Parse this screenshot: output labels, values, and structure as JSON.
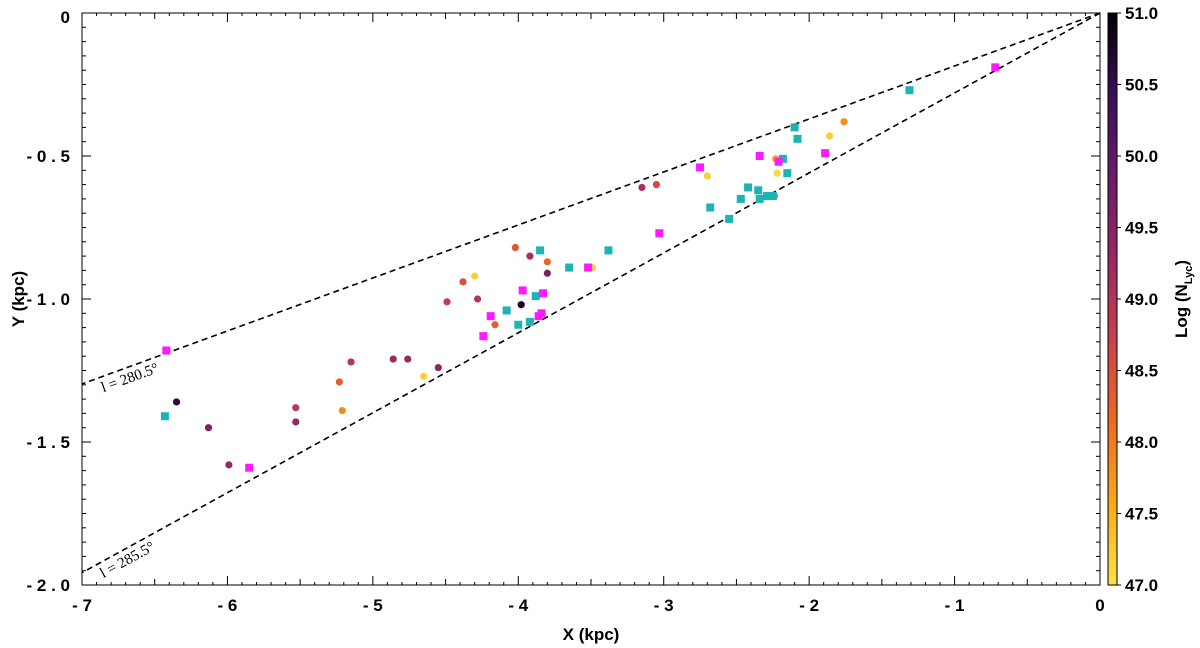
{
  "chart_data": {
    "type": "scatter",
    "xlabel": "X (kpc)",
    "ylabel": "Y (kpc)",
    "xlim": [
      -7,
      0
    ],
    "ylim": [
      -2,
      0
    ],
    "xticks": [
      -7,
      -6,
      -5,
      -4,
      -3,
      -2,
      -1,
      0
    ],
    "yticks": [
      0,
      -0.5,
      -1.0,
      -1.5,
      -2.0
    ],
    "xtick_labels": [
      "- 7",
      "- 6",
      "- 5",
      "- 4",
      "- 3",
      "- 2",
      "- 1",
      "0"
    ],
    "ytick_labels": [
      "0",
      "- 0 . 5",
      "- 1 . 0",
      "- 1 . 5",
      "- 2 . 0"
    ],
    "colorbar": {
      "label": "Log (N",
      "label_sub": "Lyc",
      "label_end": ")",
      "range": [
        47.0,
        51.0
      ],
      "ticks": [
        47.0,
        47.5,
        48.0,
        48.5,
        49.0,
        49.5,
        50.0,
        50.5,
        51.0
      ],
      "tick_labels": [
        "47.0",
        "47.5",
        "48.0",
        "48.5",
        "49.0",
        "49.5",
        "50.0",
        "50.5",
        "51.0"
      ],
      "colormap": [
        "#fde14a",
        "#f9a81b",
        "#ec6a25",
        "#c9414d",
        "#9a2860",
        "#6c1b6b",
        "#3b0f5a",
        "#000004"
      ]
    },
    "rays": [
      {
        "label": "l = 280.5°",
        "end": [
          -7,
          -1.297
        ]
      },
      {
        "label": "l = 285.5°",
        "end": [
          -7,
          -1.957
        ]
      }
    ],
    "series": [
      {
        "marker": "circle",
        "color_by": "log_NLyc",
        "points": [
          {
            "x": -6.35,
            "y": -1.36,
            "c": 50.6
          },
          {
            "x": -6.13,
            "y": -1.45,
            "c": 49.6
          },
          {
            "x": -5.99,
            "y": -1.58,
            "c": 49.3
          },
          {
            "x": -5.53,
            "y": -1.38,
            "c": 48.9
          },
          {
            "x": -5.53,
            "y": -1.43,
            "c": 49.3
          },
          {
            "x": -5.23,
            "y": -1.29,
            "c": 48.3
          },
          {
            "x": -5.21,
            "y": -1.39,
            "c": 47.8
          },
          {
            "x": -5.15,
            "y": -1.22,
            "c": 49.0
          },
          {
            "x": -4.86,
            "y": -1.21,
            "c": 49.3
          },
          {
            "x": -4.76,
            "y": -1.21,
            "c": 49.3
          },
          {
            "x": -4.65,
            "y": -1.27,
            "c": 47.2
          },
          {
            "x": -4.55,
            "y": -1.24,
            "c": 49.4
          },
          {
            "x": -4.49,
            "y": -1.01,
            "c": 48.8
          },
          {
            "x": -4.38,
            "y": -0.94,
            "c": 48.5
          },
          {
            "x": -4.3,
            "y": -0.92,
            "c": 47.2
          },
          {
            "x": -4.28,
            "y": -1.0,
            "c": 49.0
          },
          {
            "x": -4.16,
            "y": -1.09,
            "c": 48.3
          },
          {
            "x": -4.02,
            "y": -0.82,
            "c": 48.4
          },
          {
            "x": -3.98,
            "y": -1.02,
            "c": 50.8
          },
          {
            "x": -3.92,
            "y": -0.85,
            "c": 49.1
          },
          {
            "x": -3.8,
            "y": -0.87,
            "c": 48.2
          },
          {
            "x": -3.8,
            "y": -0.91,
            "c": 49.7
          },
          {
            "x": -3.49,
            "y": -0.89,
            "c": 47.2
          },
          {
            "x": -3.15,
            "y": -0.61,
            "c": 49.1
          },
          {
            "x": -3.05,
            "y": -0.6,
            "c": 48.6
          },
          {
            "x": -2.7,
            "y": -0.57,
            "c": 47.2
          },
          {
            "x": -2.24,
            "y": -0.64,
            "c": 48.6
          },
          {
            "x": -2.23,
            "y": -0.51,
            "c": 47.7
          },
          {
            "x": -2.22,
            "y": -0.56,
            "c": 47.1
          },
          {
            "x": -1.86,
            "y": -0.43,
            "c": 47.2
          },
          {
            "x": -1.76,
            "y": -0.38,
            "c": 47.8
          }
        ]
      },
      {
        "marker": "square",
        "color": "#1cb4b4",
        "points": [
          {
            "x": -6.43,
            "y": -1.41
          },
          {
            "x": -4.08,
            "y": -1.04
          },
          {
            "x": -4.0,
            "y": -1.09
          },
          {
            "x": -3.92,
            "y": -1.08
          },
          {
            "x": -3.88,
            "y": -0.99
          },
          {
            "x": -3.85,
            "y": -0.83
          },
          {
            "x": -3.65,
            "y": -0.89
          },
          {
            "x": -3.38,
            "y": -0.83
          },
          {
            "x": -2.68,
            "y": -0.68
          },
          {
            "x": -2.55,
            "y": -0.72
          },
          {
            "x": -2.47,
            "y": -0.65
          },
          {
            "x": -2.42,
            "y": -0.61
          },
          {
            "x": -2.35,
            "y": -0.62
          },
          {
            "x": -2.34,
            "y": -0.65
          },
          {
            "x": -2.29,
            "y": -0.64
          },
          {
            "x": -2.25,
            "y": -0.64
          },
          {
            "x": -2.18,
            "y": -0.51
          },
          {
            "x": -2.15,
            "y": -0.56
          },
          {
            "x": -2.1,
            "y": -0.4
          },
          {
            "x": -2.08,
            "y": -0.44
          },
          {
            "x": -1.31,
            "y": -0.27
          }
        ]
      },
      {
        "marker": "square",
        "color": "#ff19ff",
        "points": [
          {
            "x": -6.42,
            "y": -1.18
          },
          {
            "x": -5.85,
            "y": -1.59
          },
          {
            "x": -4.24,
            "y": -1.13
          },
          {
            "x": -4.19,
            "y": -1.06
          },
          {
            "x": -3.97,
            "y": -0.97
          },
          {
            "x": -3.86,
            "y": -1.06
          },
          {
            "x": -3.84,
            "y": -1.05
          },
          {
            "x": -3.83,
            "y": -0.98
          },
          {
            "x": -3.52,
            "y": -0.89
          },
          {
            "x": -3.03,
            "y": -0.77
          },
          {
            "x": -2.75,
            "y": -0.54
          },
          {
            "x": -2.34,
            "y": -0.5
          },
          {
            "x": -2.21,
            "y": -0.52
          },
          {
            "x": -1.89,
            "y": -0.49
          },
          {
            "x": -0.72,
            "y": -0.19
          }
        ]
      }
    ]
  }
}
